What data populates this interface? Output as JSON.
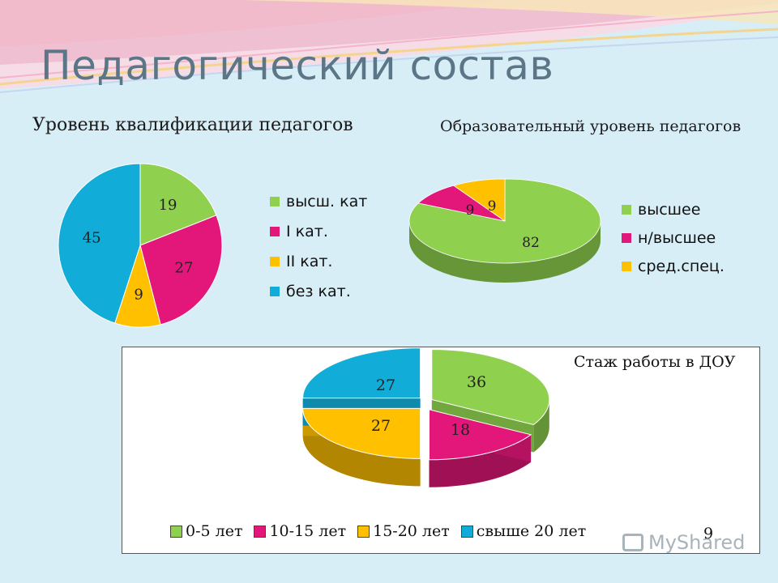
{
  "page": {
    "title": "Педагогический состав",
    "page_number": "9",
    "watermark": "MyShared"
  },
  "chart_data": [
    {
      "type": "pie",
      "title": "Уровень квалификации педагогов",
      "categories": [
        "высш. кат",
        "I кат.",
        "II кат.",
        "без кат."
      ],
      "values": [
        19,
        27,
        9,
        45
      ],
      "colors": [
        "#8fd14f",
        "#e3177a",
        "#ffc000",
        "#11acd8"
      ],
      "legend": "right"
    },
    {
      "type": "pie",
      "title": "Образовательный уровень педагогов",
      "categories": [
        "высшее",
        "н/высшее",
        "сред.спец."
      ],
      "values": [
        82,
        9,
        9
      ],
      "colors": [
        "#8fd14f",
        "#e3177a",
        "#ffc000"
      ],
      "legend": "right",
      "style": "3d"
    },
    {
      "type": "pie",
      "title": "Стаж работы в ДОУ",
      "categories": [
        "0-5 лет",
        "10-15 лет",
        "15-20 лет",
        "свыше  20 лет"
      ],
      "values": [
        36,
        18,
        27,
        27
      ],
      "colors": [
        "#8fd14f",
        "#e3177a",
        "#ffc000",
        "#11acd8"
      ],
      "legend": "bottom",
      "style": "3d-exploded"
    }
  ]
}
